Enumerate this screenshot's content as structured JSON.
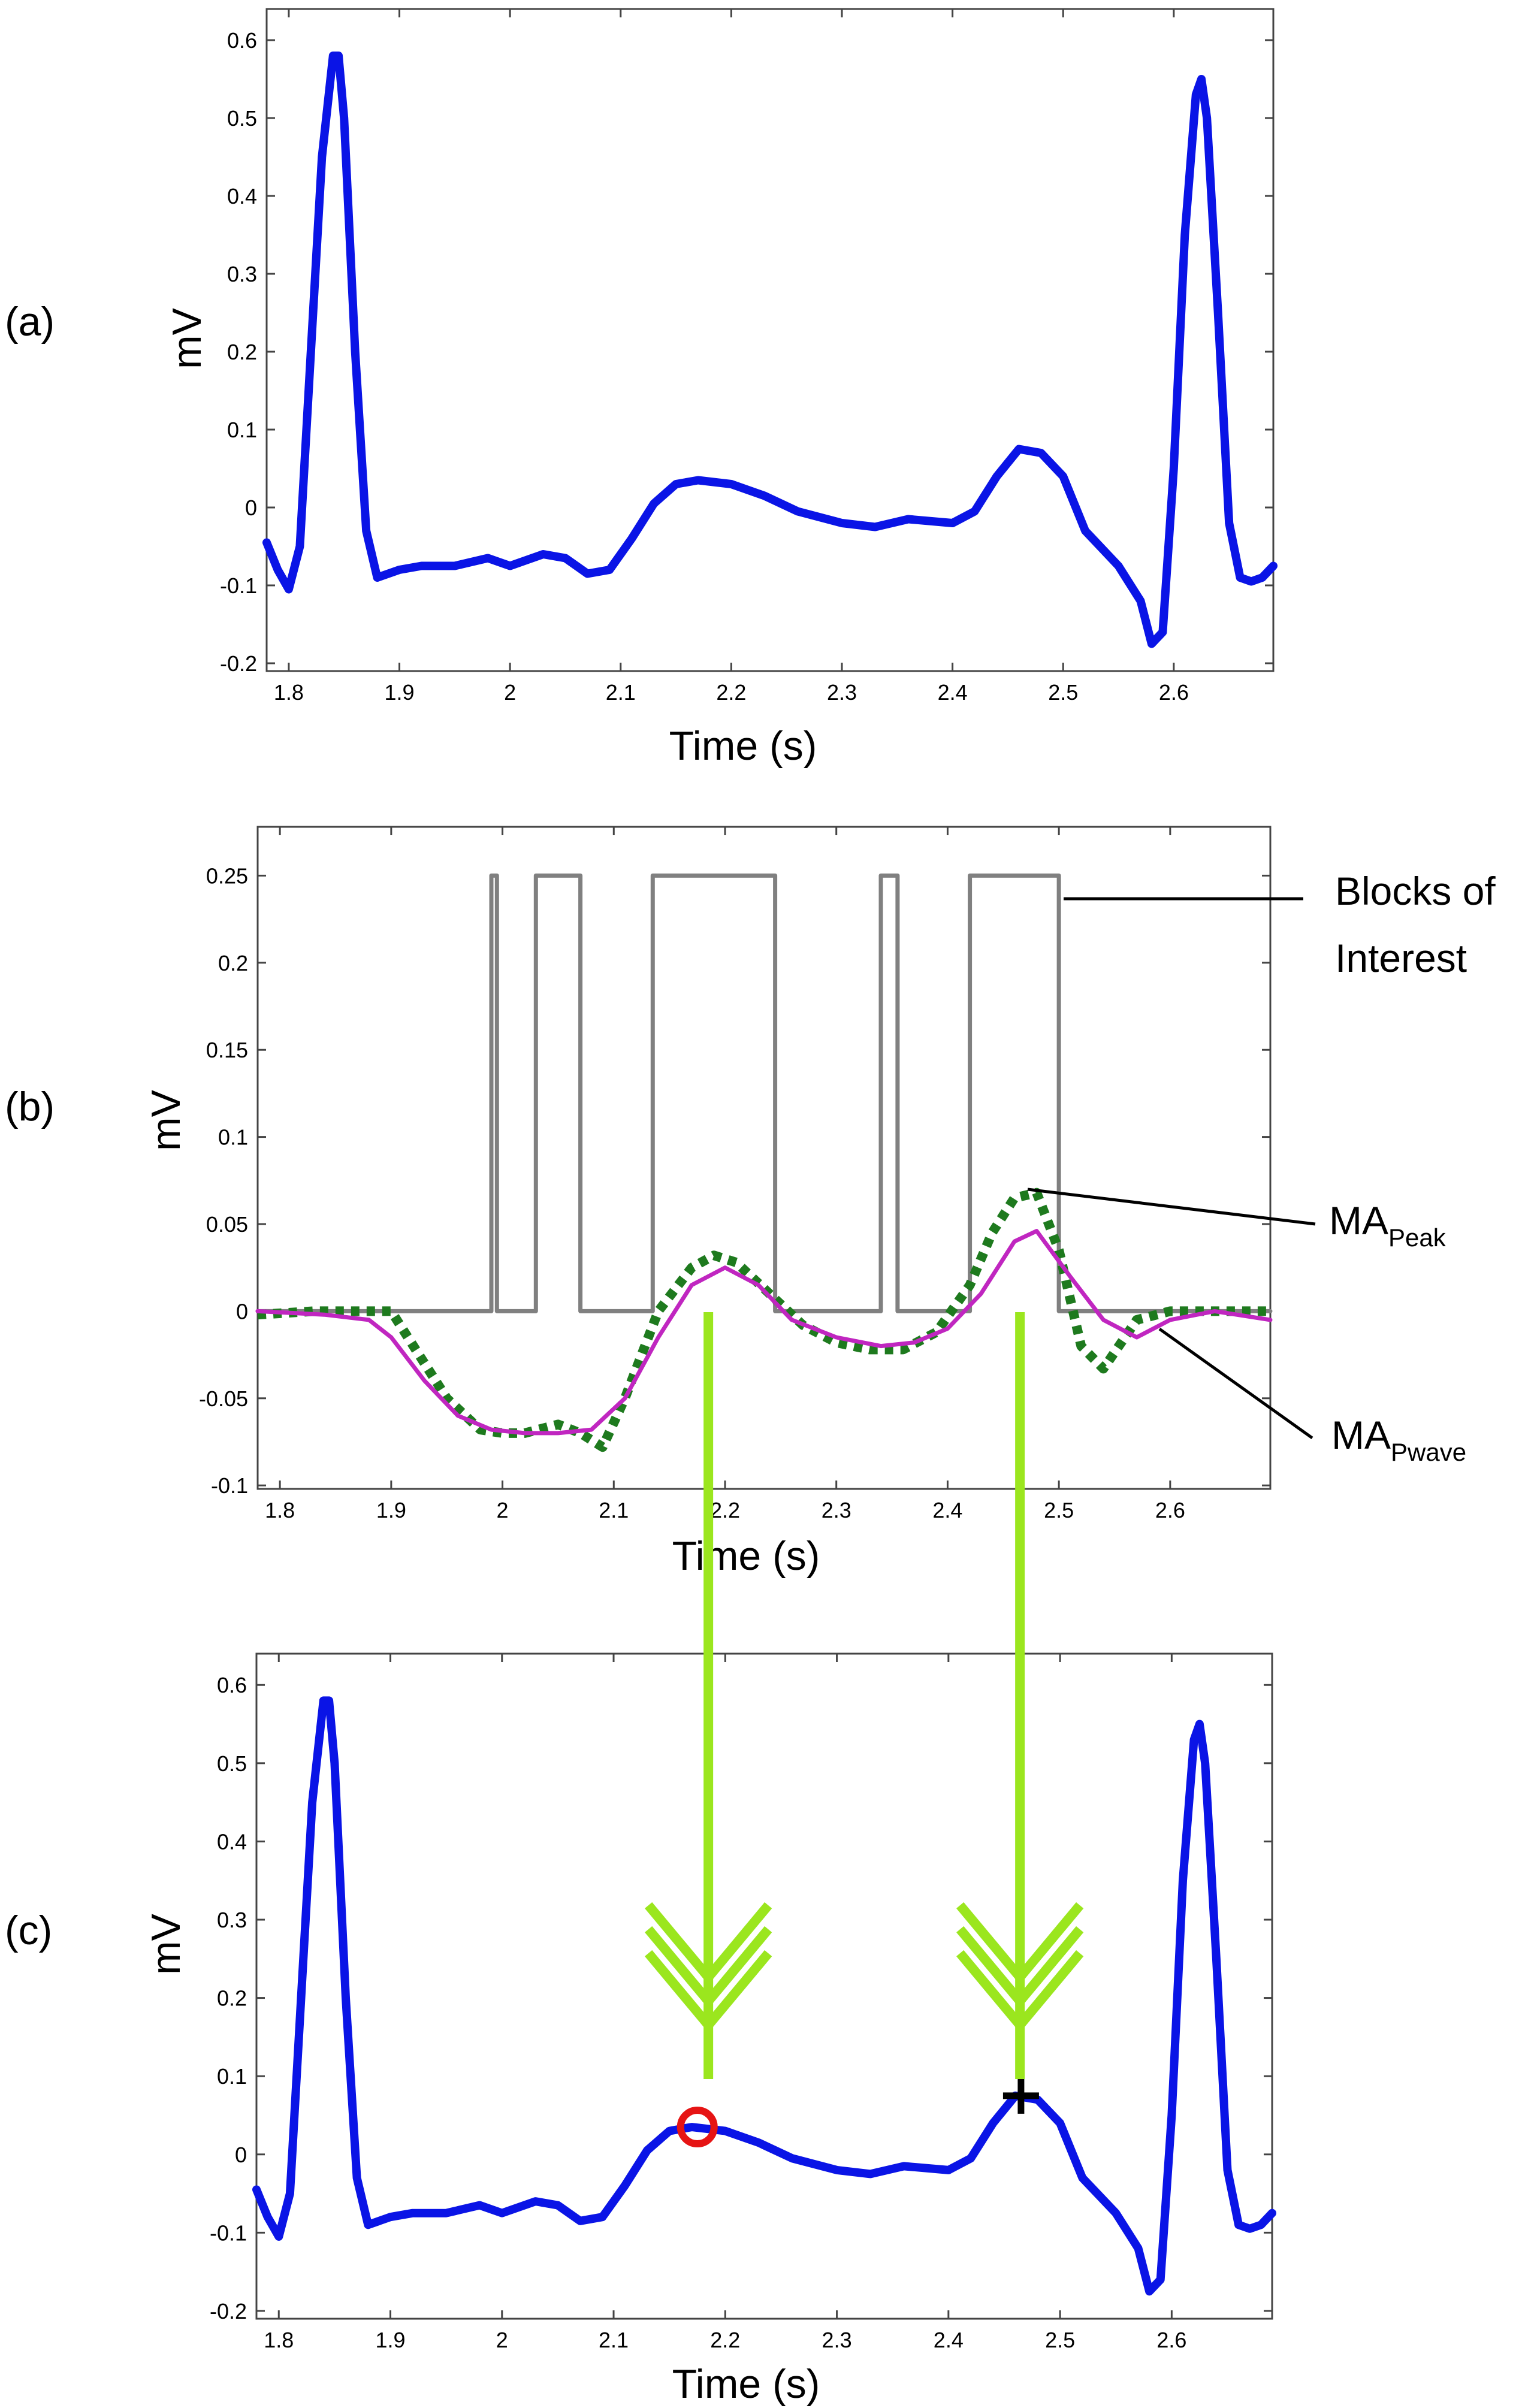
{
  "chart_data": [
    {
      "panel_label": "(a)",
      "type": "line",
      "xlabel": "Time (s)",
      "ylabel": "mV",
      "xlim": [
        1.78,
        2.69
      ],
      "ylim": [
        -0.21,
        0.64
      ],
      "xticks": [
        "1.8",
        "1.9",
        "2",
        "2.1",
        "2.2",
        "2.3",
        "2.4",
        "2.5",
        "2.6"
      ],
      "yticks": [
        "-0.2",
        "-0.1",
        "0",
        "0.1",
        "0.2",
        "0.3",
        "0.4",
        "0.5",
        "0.6"
      ],
      "series": [
        {
          "color": "#0a14e6",
          "x": [
            1.78,
            1.79,
            1.8,
            1.81,
            1.82,
            1.83,
            1.84,
            1.845,
            1.85,
            1.86,
            1.87,
            1.88,
            1.9,
            1.92,
            1.95,
            1.98,
            2.0,
            2.03,
            2.05,
            2.07,
            2.09,
            2.11,
            2.13,
            2.15,
            2.17,
            2.2,
            2.23,
            2.26,
            2.3,
            2.33,
            2.36,
            2.4,
            2.42,
            2.44,
            2.46,
            2.48,
            2.5,
            2.52,
            2.55,
            2.57,
            2.58,
            2.59,
            2.6,
            2.61,
            2.62,
            2.625,
            2.63,
            2.64,
            2.65,
            2.66,
            2.67,
            2.68,
            2.69
          ],
          "y": [
            -0.045,
            -0.08,
            -0.105,
            -0.05,
            0.2,
            0.45,
            0.58,
            0.58,
            0.5,
            0.2,
            -0.03,
            -0.09,
            -0.08,
            -0.075,
            -0.075,
            -0.065,
            -0.075,
            -0.06,
            -0.065,
            -0.085,
            -0.08,
            -0.04,
            0.005,
            0.03,
            0.035,
            0.03,
            0.015,
            -0.005,
            -0.02,
            -0.025,
            -0.015,
            -0.02,
            -0.005,
            0.04,
            0.075,
            0.07,
            0.04,
            -0.03,
            -0.075,
            -0.12,
            -0.175,
            -0.16,
            0.05,
            0.35,
            0.53,
            0.55,
            0.5,
            0.25,
            -0.02,
            -0.09,
            -0.095,
            -0.09,
            -0.075
          ]
        }
      ]
    },
    {
      "panel_label": "(b)",
      "type": "line",
      "xlabel": "Time (s)",
      "ylabel": "mV",
      "xlim": [
        1.78,
        2.69
      ],
      "ylim": [
        -0.102,
        0.278
      ],
      "xticks": [
        "1.8",
        "1.9",
        "2",
        "2.1",
        "2.2",
        "2.3",
        "2.4",
        "2.5",
        "2.6"
      ],
      "yticks": [
        "-0.1",
        "-0.05",
        "0",
        "0.05",
        "0.1",
        "0.15",
        "0.2",
        "0.25"
      ],
      "series": [
        {
          "color": "#808080",
          "style": "step",
          "x": [
            1.78,
            1.99,
            1.99,
            1.995,
            1.995,
            2.03,
            2.03,
            2.07,
            2.07,
            2.135,
            2.135,
            2.245,
            2.245,
            2.34,
            2.34,
            2.355,
            2.355,
            2.42,
            2.42,
            2.5,
            2.5,
            2.69
          ],
          "y": [
            0,
            0,
            0.25,
            0.25,
            0,
            0,
            0.25,
            0.25,
            0,
            0,
            0.25,
            0.25,
            0,
            0,
            0.25,
            0.25,
            0,
            0,
            0.25,
            0.25,
            0,
            0
          ]
        },
        {
          "color": "#1e7a1e",
          "style": "dotted",
          "x": [
            1.78,
            1.83,
            1.87,
            1.9,
            1.92,
            1.95,
            1.98,
            2.0,
            2.02,
            2.05,
            2.07,
            2.09,
            2.11,
            2.14,
            2.17,
            2.19,
            2.21,
            2.24,
            2.27,
            2.3,
            2.33,
            2.36,
            2.39,
            2.42,
            2.44,
            2.46,
            2.48,
            2.5,
            2.52,
            2.54,
            2.57,
            2.6,
            2.63,
            2.66,
            2.69
          ],
          "y": [
            -0.002,
            0.0,
            0.0,
            0.0,
            -0.02,
            -0.05,
            -0.068,
            -0.07,
            -0.07,
            -0.065,
            -0.07,
            -0.078,
            -0.05,
            0.0,
            0.025,
            0.032,
            0.028,
            0.01,
            -0.008,
            -0.018,
            -0.022,
            -0.022,
            -0.012,
            0.015,
            0.045,
            0.065,
            0.068,
            0.035,
            -0.02,
            -0.033,
            -0.005,
            0.0,
            0.0,
            0.0,
            0.0
          ]
        },
        {
          "color": "#c026c0",
          "x": [
            1.78,
            1.84,
            1.88,
            1.9,
            1.93,
            1.96,
            1.99,
            2.02,
            2.05,
            2.08,
            2.11,
            2.14,
            2.17,
            2.2,
            2.23,
            2.26,
            2.3,
            2.34,
            2.37,
            2.4,
            2.43,
            2.46,
            2.48,
            2.51,
            2.54,
            2.57,
            2.6,
            2.64,
            2.69
          ],
          "y": [
            0.0,
            -0.002,
            -0.005,
            -0.015,
            -0.04,
            -0.06,
            -0.068,
            -0.07,
            -0.07,
            -0.068,
            -0.05,
            -0.015,
            0.015,
            0.025,
            0.015,
            -0.005,
            -0.015,
            -0.02,
            -0.018,
            -0.01,
            0.01,
            0.04,
            0.046,
            0.02,
            -0.005,
            -0.015,
            -0.005,
            0.0,
            -0.005
          ]
        }
      ],
      "annotations": [
        {
          "text": "Blocks of",
          "text2": "Interest"
        },
        {
          "text": "MA",
          "sub": "Peak"
        },
        {
          "text": "MA",
          "sub": "Pwave"
        }
      ]
    },
    {
      "panel_label": "(c)",
      "type": "line",
      "xlabel": "Time (s)",
      "ylabel": "mV",
      "xlim": [
        1.78,
        2.69
      ],
      "ylim": [
        -0.21,
        0.64
      ],
      "xticks": [
        "1.8",
        "1.9",
        "2",
        "2.1",
        "2.2",
        "2.3",
        "2.4",
        "2.5",
        "2.6"
      ],
      "yticks": [
        "-0.2",
        "-0.1",
        "0",
        "0.1",
        "0.2",
        "0.3",
        "0.4",
        "0.5",
        "0.6"
      ],
      "series": [
        {
          "color": "#0a14e6",
          "x": [
            1.78,
            1.79,
            1.8,
            1.81,
            1.82,
            1.83,
            1.84,
            1.845,
            1.85,
            1.86,
            1.87,
            1.88,
            1.9,
            1.92,
            1.95,
            1.98,
            2.0,
            2.03,
            2.05,
            2.07,
            2.09,
            2.11,
            2.13,
            2.15,
            2.17,
            2.2,
            2.23,
            2.26,
            2.3,
            2.33,
            2.36,
            2.4,
            2.42,
            2.44,
            2.46,
            2.48,
            2.5,
            2.52,
            2.55,
            2.57,
            2.58,
            2.59,
            2.6,
            2.61,
            2.62,
            2.625,
            2.63,
            2.64,
            2.65,
            2.66,
            2.67,
            2.68,
            2.69
          ],
          "y": [
            -0.045,
            -0.08,
            -0.105,
            -0.05,
            0.2,
            0.45,
            0.58,
            0.58,
            0.5,
            0.2,
            -0.03,
            -0.09,
            -0.08,
            -0.075,
            -0.075,
            -0.065,
            -0.075,
            -0.06,
            -0.065,
            -0.085,
            -0.08,
            -0.04,
            0.005,
            0.03,
            0.035,
            0.03,
            0.015,
            -0.005,
            -0.02,
            -0.025,
            -0.015,
            -0.02,
            -0.005,
            0.04,
            0.075,
            0.07,
            0.04,
            -0.03,
            -0.075,
            -0.12,
            -0.175,
            -0.16,
            0.05,
            0.35,
            0.53,
            0.55,
            0.5,
            0.25,
            -0.02,
            -0.09,
            -0.095,
            -0.09,
            -0.075
          ]
        }
      ],
      "markers": [
        {
          "shape": "circle",
          "color": "#e61414",
          "x": 2.175,
          "y": 0.035
        },
        {
          "shape": "plus",
          "color": "#000000",
          "x": 2.465,
          "y": 0.075
        }
      ]
    }
  ],
  "arrows": {
    "color": "#9be61e",
    "x": [
      2.185,
      2.465
    ]
  }
}
